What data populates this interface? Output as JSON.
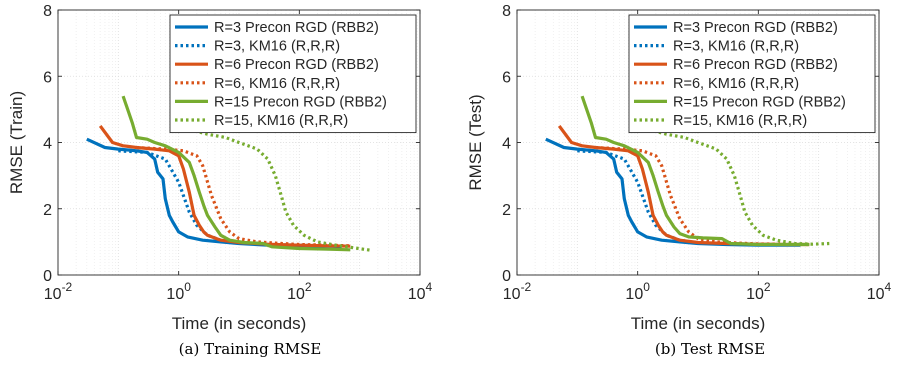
{
  "chart_data": [
    {
      "type": "line",
      "panel_id": "a",
      "caption": "(a)  Training RMSE",
      "title": "",
      "xlabel": "Time (in seconds)",
      "ylabel": "RMSE (Train)",
      "xscale": "log",
      "xlim": [
        0.01,
        10000
      ],
      "ylim": [
        0,
        8
      ],
      "x_ticks": [
        {
          "base": "10",
          "exp": "-2"
        },
        {
          "base": "10",
          "exp": "0"
        },
        {
          "base": "10",
          "exp": "2"
        },
        {
          "base": "10",
          "exp": "4"
        }
      ],
      "y_ticks": [
        "0",
        "2",
        "4",
        "6",
        "8"
      ],
      "grid": true,
      "legend_position": "top-right",
      "series": [
        {
          "name": "R=3 Precon RGD (RBB2)",
          "color": "#0072BD",
          "style": "solid",
          "points": [
            [
              0.03,
              4.1
            ],
            [
              0.06,
              3.85
            ],
            [
              0.1,
              3.8
            ],
            [
              0.2,
              3.75
            ],
            [
              0.3,
              3.7
            ],
            [
              0.4,
              3.5
            ],
            [
              0.45,
              3.1
            ],
            [
              0.55,
              2.9
            ],
            [
              0.6,
              2.3
            ],
            [
              0.7,
              1.8
            ],
            [
              0.8,
              1.6
            ],
            [
              1.0,
              1.3
            ],
            [
              1.4,
              1.15
            ],
            [
              2.5,
              1.05
            ],
            [
              5,
              1.0
            ],
            [
              10,
              0.95
            ],
            [
              30,
              0.9
            ],
            [
              100,
              0.88
            ],
            [
              300,
              0.87
            ],
            [
              500,
              0.86
            ]
          ]
        },
        {
          "name": "R=3, KM16 (R,R,R)",
          "color": "#0072BD",
          "style": "dotted",
          "points": [
            [
              0.1,
              3.75
            ],
            [
              0.3,
              3.7
            ],
            [
              0.6,
              3.5
            ],
            [
              1.0,
              2.8
            ],
            [
              1.5,
              1.9
            ],
            [
              2.0,
              1.5
            ],
            [
              3,
              1.2
            ],
            [
              5,
              1.05
            ],
            [
              10,
              0.97
            ],
            [
              30,
              0.92
            ],
            [
              100,
              0.9
            ],
            [
              300,
              0.88
            ],
            [
              500,
              0.87
            ]
          ]
        },
        {
          "name": "R=6 Precon RGD (RBB2)",
          "color": "#D95319",
          "style": "solid",
          "points": [
            [
              0.05,
              4.5
            ],
            [
              0.08,
              4.0
            ],
            [
              0.12,
              3.9
            ],
            [
              0.2,
              3.85
            ],
            [
              0.4,
              3.8
            ],
            [
              0.7,
              3.75
            ],
            [
              1.0,
              3.6
            ],
            [
              1.2,
              3.2
            ],
            [
              1.5,
              2.5
            ],
            [
              1.8,
              1.8
            ],
            [
              2.2,
              1.5
            ],
            [
              2.6,
              1.3
            ],
            [
              3,
              1.2
            ],
            [
              5,
              1.05
            ],
            [
              10,
              0.98
            ],
            [
              30,
              0.93
            ],
            [
              100,
              0.9
            ],
            [
              300,
              0.88
            ],
            [
              700,
              0.87
            ]
          ]
        },
        {
          "name": "R=6, KM16 (R,R,R)",
          "color": "#D95319",
          "style": "dotted",
          "points": [
            [
              0.2,
              3.85
            ],
            [
              0.6,
              3.8
            ],
            [
              1.2,
              3.75
            ],
            [
              2.0,
              3.6
            ],
            [
              2.5,
              3.3
            ],
            [
              3.5,
              2.4
            ],
            [
              5,
              1.7
            ],
            [
              7,
              1.3
            ],
            [
              10,
              1.1
            ],
            [
              20,
              1.0
            ],
            [
              50,
              0.95
            ],
            [
              100,
              0.92
            ],
            [
              300,
              0.9
            ],
            [
              700,
              0.88
            ]
          ]
        },
        {
          "name": "R=15 Precon RGD (RBB2)",
          "color": "#77AC30",
          "style": "solid",
          "points": [
            [
              0.12,
              5.4
            ],
            [
              0.17,
              4.6
            ],
            [
              0.2,
              4.15
            ],
            [
              0.3,
              4.1
            ],
            [
              0.4,
              4.0
            ],
            [
              0.6,
              3.9
            ],
            [
              1.0,
              3.7
            ],
            [
              1.5,
              3.4
            ],
            [
              1.8,
              3.0
            ],
            [
              2.2,
              2.5
            ],
            [
              2.6,
              2.1
            ],
            [
              3,
              1.8
            ],
            [
              4,
              1.45
            ],
            [
              5,
              1.2
            ],
            [
              7,
              1.05
            ],
            [
              12,
              0.98
            ],
            [
              25,
              0.95
            ],
            [
              35,
              0.85
            ],
            [
              100,
              0.8
            ],
            [
              300,
              0.78
            ],
            [
              700,
              0.76
            ]
          ]
        },
        {
          "name": "R=15, KM16 (R,R,R)",
          "color": "#77AC30",
          "style": "dotted",
          "points": [
            [
              1.5,
              4.4
            ],
            [
              3,
              4.25
            ],
            [
              6,
              4.15
            ],
            [
              10,
              4.0
            ],
            [
              20,
              3.8
            ],
            [
              30,
              3.5
            ],
            [
              40,
              3.0
            ],
            [
              50,
              2.4
            ],
            [
              60,
              1.9
            ],
            [
              80,
              1.5
            ],
            [
              120,
              1.2
            ],
            [
              200,
              1.0
            ],
            [
              400,
              0.9
            ],
            [
              800,
              0.82
            ],
            [
              1500,
              0.75
            ]
          ]
        }
      ]
    },
    {
      "type": "line",
      "panel_id": "b",
      "caption": "(b)  Test RMSE",
      "title": "",
      "xlabel": "Time (in seconds)",
      "ylabel": "RMSE (Test)",
      "xscale": "log",
      "xlim": [
        0.01,
        10000
      ],
      "ylim": [
        0,
        8
      ],
      "x_ticks": [
        {
          "base": "10",
          "exp": "-2"
        },
        {
          "base": "10",
          "exp": "0"
        },
        {
          "base": "10",
          "exp": "2"
        },
        {
          "base": "10",
          "exp": "4"
        }
      ],
      "y_ticks": [
        "0",
        "2",
        "4",
        "6",
        "8"
      ],
      "grid": true,
      "legend_position": "top-right",
      "series": [
        {
          "name": "R=3 Precon RGD (RBB2)",
          "color": "#0072BD",
          "style": "solid",
          "points": [
            [
              0.03,
              4.1
            ],
            [
              0.06,
              3.85
            ],
            [
              0.1,
              3.8
            ],
            [
              0.2,
              3.75
            ],
            [
              0.3,
              3.7
            ],
            [
              0.4,
              3.5
            ],
            [
              0.45,
              3.1
            ],
            [
              0.55,
              2.9
            ],
            [
              0.6,
              2.3
            ],
            [
              0.7,
              1.8
            ],
            [
              0.8,
              1.6
            ],
            [
              1.0,
              1.3
            ],
            [
              1.4,
              1.15
            ],
            [
              2.5,
              1.05
            ],
            [
              5,
              1.0
            ],
            [
              10,
              0.95
            ],
            [
              30,
              0.92
            ],
            [
              100,
              0.9
            ],
            [
              300,
              0.9
            ],
            [
              500,
              0.9
            ]
          ]
        },
        {
          "name": "R=3, KM16 (R,R,R)",
          "color": "#0072BD",
          "style": "dotted",
          "points": [
            [
              0.1,
              3.75
            ],
            [
              0.3,
              3.7
            ],
            [
              0.6,
              3.5
            ],
            [
              1.0,
              2.8
            ],
            [
              1.5,
              1.9
            ],
            [
              2.0,
              1.5
            ],
            [
              3,
              1.2
            ],
            [
              5,
              1.05
            ],
            [
              10,
              0.97
            ],
            [
              30,
              0.93
            ],
            [
              100,
              0.92
            ],
            [
              300,
              0.92
            ],
            [
              500,
              0.92
            ]
          ]
        },
        {
          "name": "R=6 Precon RGD (RBB2)",
          "color": "#D95319",
          "style": "solid",
          "points": [
            [
              0.05,
              4.5
            ],
            [
              0.08,
              4.0
            ],
            [
              0.12,
              3.9
            ],
            [
              0.2,
              3.85
            ],
            [
              0.4,
              3.8
            ],
            [
              0.7,
              3.75
            ],
            [
              1.0,
              3.6
            ],
            [
              1.2,
              3.2
            ],
            [
              1.5,
              2.5
            ],
            [
              1.8,
              1.8
            ],
            [
              2.2,
              1.5
            ],
            [
              2.6,
              1.3
            ],
            [
              3,
              1.2
            ],
            [
              5,
              1.05
            ],
            [
              10,
              0.98
            ],
            [
              30,
              0.95
            ],
            [
              100,
              0.93
            ],
            [
              300,
              0.92
            ],
            [
              700,
              0.92
            ]
          ]
        },
        {
          "name": "R=6, KM16 (R,R,R)",
          "color": "#D95319",
          "style": "dotted",
          "points": [
            [
              0.2,
              3.85
            ],
            [
              0.6,
              3.8
            ],
            [
              1.2,
              3.75
            ],
            [
              2.0,
              3.6
            ],
            [
              2.5,
              3.3
            ],
            [
              3.5,
              2.4
            ],
            [
              5,
              1.7
            ],
            [
              7,
              1.3
            ],
            [
              10,
              1.1
            ],
            [
              20,
              1.0
            ],
            [
              50,
              0.96
            ],
            [
              100,
              0.94
            ],
            [
              300,
              0.93
            ],
            [
              700,
              0.92
            ]
          ]
        },
        {
          "name": "R=15 Precon RGD (RBB2)",
          "color": "#77AC30",
          "style": "solid",
          "points": [
            [
              0.12,
              5.4
            ],
            [
              0.17,
              4.6
            ],
            [
              0.2,
              4.15
            ],
            [
              0.3,
              4.1
            ],
            [
              0.4,
              4.0
            ],
            [
              0.6,
              3.9
            ],
            [
              1.0,
              3.7
            ],
            [
              1.5,
              3.4
            ],
            [
              1.8,
              3.0
            ],
            [
              2.2,
              2.5
            ],
            [
              2.6,
              2.1
            ],
            [
              3,
              1.8
            ],
            [
              4,
              1.45
            ],
            [
              5,
              1.25
            ],
            [
              7,
              1.15
            ],
            [
              12,
              1.12
            ],
            [
              25,
              1.1
            ],
            [
              35,
              0.95
            ],
            [
              100,
              0.92
            ],
            [
              300,
              0.92
            ],
            [
              700,
              0.92
            ]
          ]
        },
        {
          "name": "R=15, KM16 (R,R,R)",
          "color": "#77AC30",
          "style": "dotted",
          "points": [
            [
              1.5,
              4.4
            ],
            [
              3,
              4.25
            ],
            [
              6,
              4.15
            ],
            [
              10,
              4.0
            ],
            [
              20,
              3.8
            ],
            [
              30,
              3.5
            ],
            [
              40,
              3.0
            ],
            [
              50,
              2.4
            ],
            [
              60,
              1.9
            ],
            [
              80,
              1.5
            ],
            [
              120,
              1.2
            ],
            [
              200,
              1.05
            ],
            [
              400,
              0.95
            ],
            [
              800,
              0.93
            ],
            [
              1500,
              0.95
            ]
          ]
        }
      ]
    }
  ]
}
